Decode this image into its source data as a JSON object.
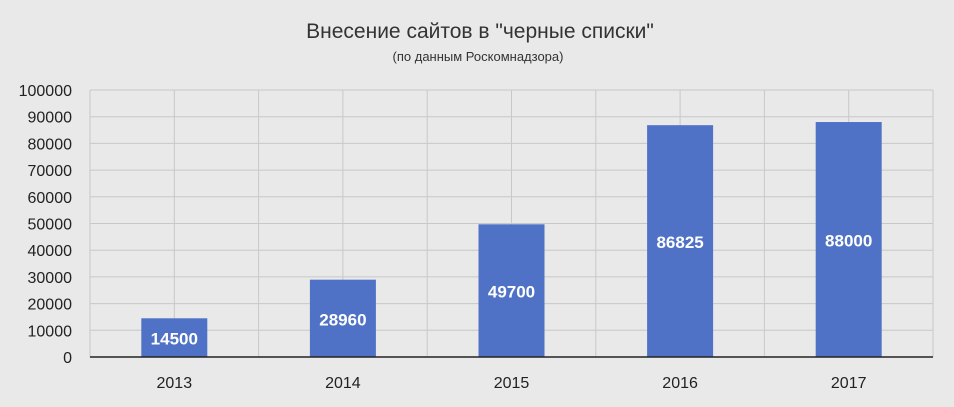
{
  "chart_data": {
    "type": "bar",
    "title": "Внесение сайтов в \"черные списки\"",
    "subtitle": "(по данным Роскомнадзора)",
    "categories": [
      "2013",
      "2014",
      "2015",
      "2016",
      "2017"
    ],
    "series": [
      {
        "values": [
          14500,
          28960,
          49700,
          86825,
          88000
        ],
        "color": "#4f72c6"
      }
    ],
    "data_labels": [
      "14500",
      "28960",
      "49700",
      "86825",
      "88000"
    ],
    "xlabel": "",
    "ylabel": "",
    "ylim": [
      0,
      100000
    ],
    "yticks": [
      "0",
      "10000",
      "20000",
      "30000",
      "40000",
      "50000",
      "60000",
      "70000",
      "80000",
      "90000",
      "100000"
    ],
    "grid": true,
    "legend": "none"
  }
}
